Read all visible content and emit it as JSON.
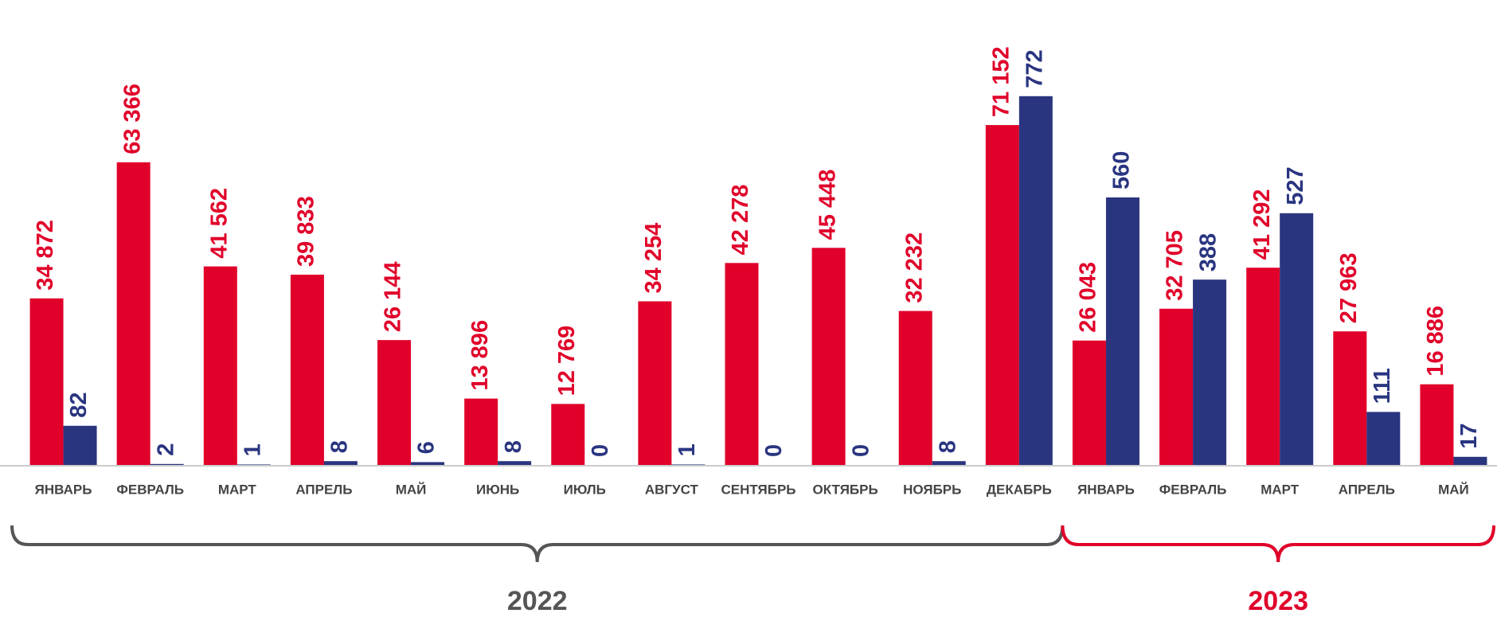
{
  "chart_data": {
    "type": "bar",
    "categories": [
      "ЯНВАРЬ",
      "ФЕВРАЛЬ",
      "МАРТ",
      "АПРЕЛЬ",
      "МАЙ",
      "ИЮНЬ",
      "ИЮЛЬ",
      "АВГУСТ",
      "СЕНТЯБРЬ",
      "ОКТЯБРЬ",
      "НОЯБРЬ",
      "ДЕКАБРЬ",
      "ЯНВАРЬ",
      "ФЕВРАЛЬ",
      "МАРТ",
      "АПРЕЛЬ",
      "МАЙ"
    ],
    "series": [
      {
        "color": "#e0002a",
        "values": [
          34872,
          63366,
          41562,
          39833,
          26144,
          13896,
          12769,
          34254,
          42278,
          45448,
          32232,
          71152,
          26043,
          32705,
          41292,
          27963,
          16886
        ],
        "value_labels": [
          "34 872",
          "63 366",
          "41 562",
          "39 833",
          "26 144",
          "13 896",
          "12 769",
          "34 254",
          "42 278",
          "45 448",
          "32 232",
          "71 152",
          "26 043",
          "32 705",
          "41 292",
          "27 963",
          "16 886"
        ]
      },
      {
        "color": "#2a3580",
        "axis": "y2",
        "values": [
          82,
          2,
          1,
          8,
          6,
          8,
          0,
          1,
          0,
          0,
          8,
          772,
          560,
          388,
          527,
          111,
          17
        ]
      }
    ],
    "ylim": [
      0,
      90000
    ],
    "y2lim": [
      0,
      900
    ],
    "annotations": [
      {
        "text": "2022",
        "color": "#555555"
      },
      {
        "text": "2023",
        "color": "#e0002a"
      }
    ]
  }
}
